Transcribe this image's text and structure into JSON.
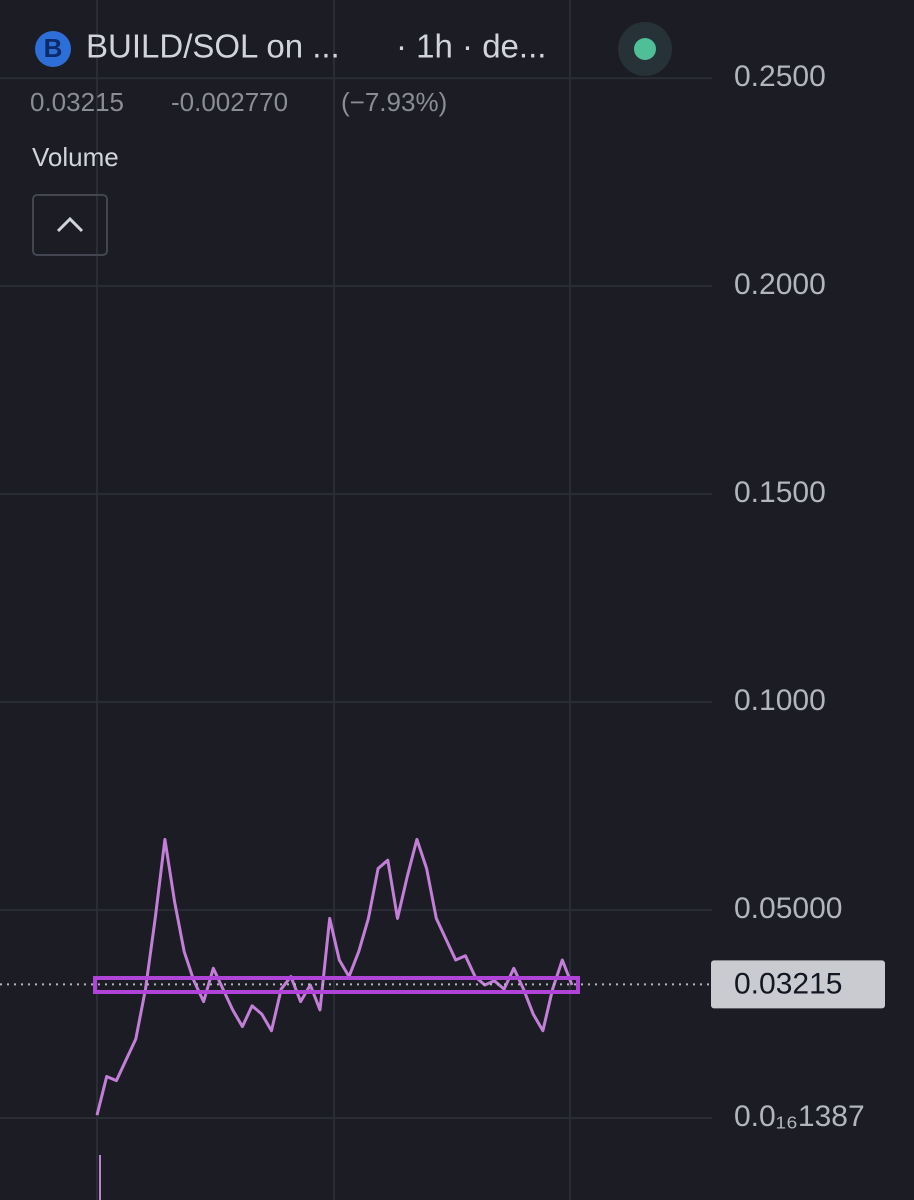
{
  "header": {
    "logo": "B",
    "symbol": "BUILD/SOL on ...",
    "interval": "· 1h · de...",
    "change": "-0.002770",
    "change_pct": "(−7.93%)",
    "indicator": "Volume"
  },
  "chart_data": {
    "type": "line",
    "color": "#c37fd8",
    "last_price": 0.03215,
    "values": [
      0.0007,
      0.01,
      0.009,
      0.014,
      0.019,
      0.031,
      0.048,
      0.067,
      0.052,
      0.04,
      0.033,
      0.028,
      0.036,
      0.031,
      0.026,
      0.022,
      0.027,
      0.025,
      0.021,
      0.031,
      0.034,
      0.028,
      0.032,
      0.026,
      0.048,
      0.038,
      0.034,
      0.04,
      0.048,
      0.06,
      0.062,
      0.048,
      0.058,
      0.067,
      0.06,
      0.048,
      0.043,
      0.038,
      0.039,
      0.034,
      0.032,
      0.033,
      0.031,
      0.036,
      0.031,
      0.025,
      0.021,
      0.031,
      0.038,
      0.032
    ],
    "ylim": [
      -0.0197,
      0.2688
    ],
    "yticks": [
      {
        "value": 1.387e-17,
        "label": "0.0₁₆1387"
      },
      {
        "value": 0.05,
        "label": "0.05000"
      },
      {
        "value": 0.1,
        "label": "0.1000"
      },
      {
        "value": 0.15,
        "label": "0.1500"
      },
      {
        "value": 0.2,
        "label": "0.2000"
      },
      {
        "value": 0.25,
        "label": "0.2500"
      }
    ],
    "grid": true
  }
}
